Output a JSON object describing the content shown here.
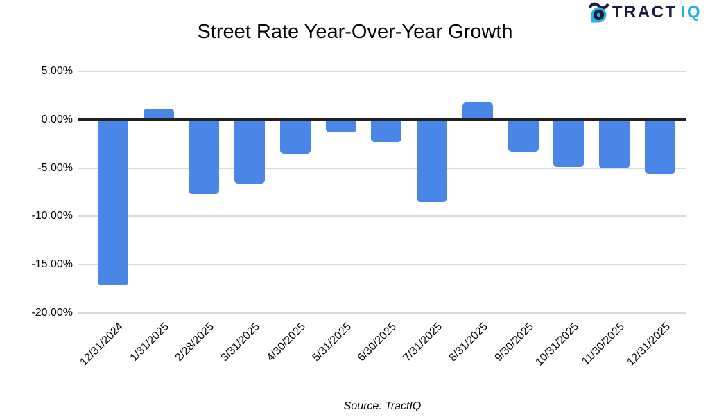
{
  "logo": {
    "brand_primary": "TRACT",
    "brand_secondary": "IQ",
    "navy": "#1a1e3c",
    "cyan": "#2ab1e3"
  },
  "chart_data": {
    "type": "bar",
    "title": "Street Rate Year-Over-Year Growth",
    "categories": [
      "12/31/2024",
      "1/31/2025",
      "2/28/2025",
      "3/31/2025",
      "4/30/2025",
      "5/31/2025",
      "6/30/2025",
      "7/31/2025",
      "8/31/2025",
      "9/30/2025",
      "10/31/2025",
      "11/30/2025",
      "12/31/2025"
    ],
    "values": [
      -17.1,
      1.1,
      -7.7,
      -6.6,
      -3.5,
      -1.3,
      -2.3,
      -8.5,
      1.8,
      -3.3,
      -4.9,
      -5.0,
      -5.6
    ],
    "value_unit": "percent",
    "xlabel": "",
    "ylabel": "",
    "ylim": [
      -20,
      5
    ],
    "y_tick_values": [
      5,
      0,
      -5,
      -10,
      -15,
      -20
    ],
    "y_tick_labels": [
      "5.00%",
      "0.00%",
      "-5.00%",
      "-10.00%",
      "-15.00%",
      "-20.00%"
    ],
    "grid": true,
    "legend_position": "none",
    "bar_color": "#4a86e8",
    "grid_color": "#dadada",
    "zero_line_color": "#212121"
  },
  "source_note": "Source: TractIQ"
}
